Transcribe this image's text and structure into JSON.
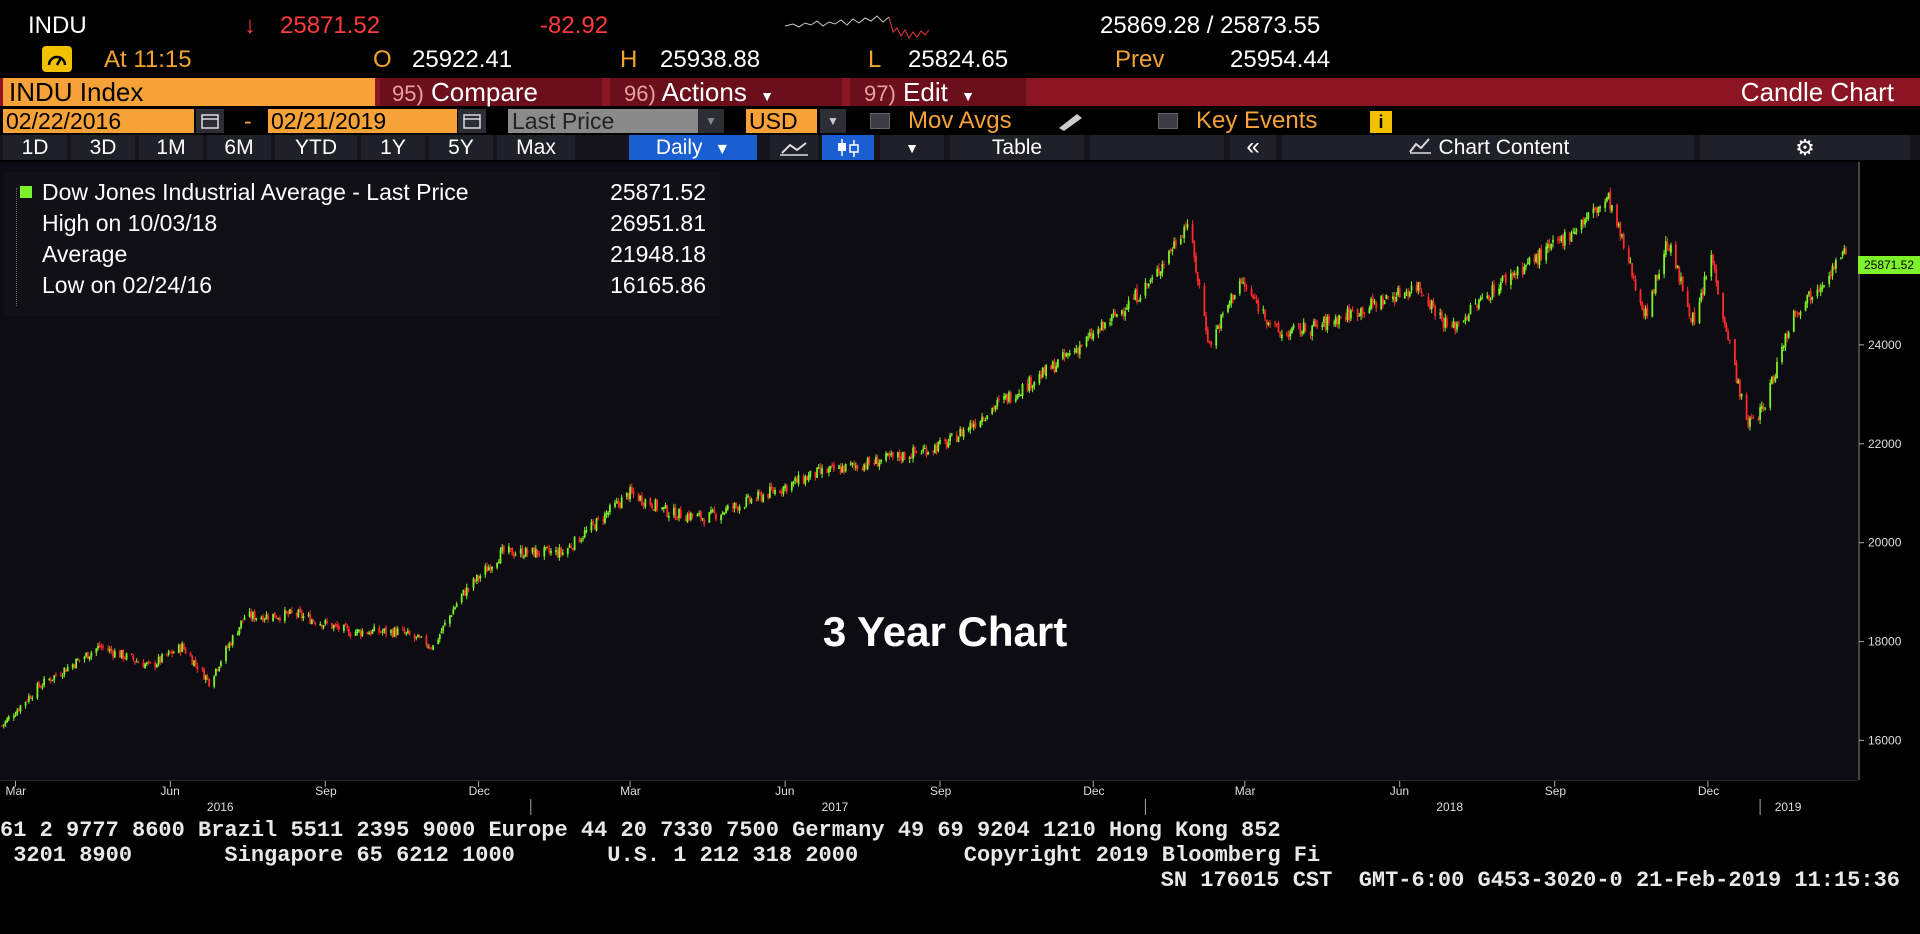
{
  "quote": {
    "ticker": "INDU",
    "arrow": "↓",
    "last": "25871.52",
    "change": "-82.92",
    "bid_ask": "25869.28 / 25873.55",
    "time_label": "At 11:15",
    "open_label": "O",
    "open": "25922.41",
    "high_label": "H",
    "high": "25938.88",
    "low_label": "L",
    "low": "25824.65",
    "prev_label": "Prev",
    "prev": "25954.44"
  },
  "toolbar": {
    "security": "INDU Index",
    "compare_num": "95)",
    "compare": "Compare",
    "actions_num": "96)",
    "actions": "Actions",
    "edit_num": "97)",
    "edit": "Edit",
    "chart_type": "Candle Chart",
    "start_date": "02/22/2016",
    "dash": "-",
    "end_date": "02/21/2019",
    "field": "Last Price",
    "currency": "USD",
    "mov_avgs": "Mov Avgs",
    "key_events": "Key Events",
    "ranges": [
      "1D",
      "3D",
      "1M",
      "6M",
      "YTD",
      "1Y",
      "5Y",
      "Max"
    ],
    "period": "Daily",
    "table": "Table",
    "chart_content": "Chart Content"
  },
  "legend": {
    "title": "Dow Jones Industrial Average - Last Price",
    "last": "25871.52",
    "high_label": "High on 10/03/18",
    "high": "26951.81",
    "avg_label": "Average",
    "avg": "21948.18",
    "low_label": "Low on 02/24/16",
    "low": "16165.86"
  },
  "overlay_text": "3 Year Chart",
  "last_price_tag": "25871.52",
  "footer": {
    "line1": "61 2 9777 8600 Brazil 5511 2395 9000 Europe 44 20 7330 7500 Germany 49 69 9204 1210 Hong Kong 852",
    "line2": " 3201 8900       Singapore 65 6212 1000       U.S. 1 212 318 2000        Copyright 2019 Bloomberg Fi",
    "line3": "SN 176015 CST  GMT-6:00 G453-3020-0 21-Feb-2019 11:15:36"
  },
  "colors": {
    "up": "#7df22a",
    "down": "#ff2a2a",
    "accent": "#f7a238",
    "brand_red": "#8c1524"
  },
  "chart_data": {
    "type": "line",
    "title": "",
    "xlabel": "",
    "ylabel": "",
    "ylim": [
      15200,
      27700
    ],
    "y_ticks": [
      "16000",
      "18000",
      "20000",
      "22000",
      "24000"
    ],
    "x_month_ticks": [
      "Mar",
      "Jun",
      "Sep",
      "Dec",
      "Mar",
      "Jun",
      "Sep",
      "Dec",
      "Mar",
      "Jun",
      "Sep",
      "Dec"
    ],
    "x_year_ticks": [
      "2016",
      "2017",
      "2018",
      "2019"
    ],
    "series": [
      {
        "name": "Dow Jones Industrial Average - Last Price",
        "x": [
          "2016-02-22",
          "2016-03-15",
          "2016-04-20",
          "2016-05-20",
          "2016-06-08",
          "2016-06-24",
          "2016-07-15",
          "2016-08-15",
          "2016-09-15",
          "2016-10-15",
          "2016-11-04",
          "2016-11-20",
          "2016-12-15",
          "2017-01-20",
          "2017-03-01",
          "2017-03-25",
          "2017-04-15",
          "2017-05-15",
          "2017-06-20",
          "2017-07-20",
          "2017-08-15",
          "2017-09-05",
          "2017-10-05",
          "2017-11-05",
          "2017-12-05",
          "2018-01-05",
          "2018-01-26",
          "2018-02-08",
          "2018-02-26",
          "2018-03-22",
          "2018-04-15",
          "2018-05-15",
          "2018-06-12",
          "2018-07-01",
          "2018-08-01",
          "2018-09-01",
          "2018-10-03",
          "2018-10-25",
          "2018-11-07",
          "2018-11-23",
          "2018-12-03",
          "2018-12-24",
          "2019-01-03",
          "2019-01-20",
          "2019-02-21"
        ],
        "values": [
          16300,
          17100,
          17900,
          17500,
          17900,
          17200,
          18500,
          18550,
          18200,
          18200,
          17900,
          18900,
          19800,
          19800,
          21000,
          20600,
          20500,
          20900,
          21400,
          21600,
          21800,
          22000,
          22800,
          23500,
          24300,
          25300,
          26500,
          24000,
          25300,
          24200,
          24400,
          24800,
          25200,
          24300,
          25300,
          26000,
          26950,
          24600,
          26100,
          24400,
          25800,
          22400,
          22700,
          24600,
          25870
        ]
      }
    ]
  }
}
